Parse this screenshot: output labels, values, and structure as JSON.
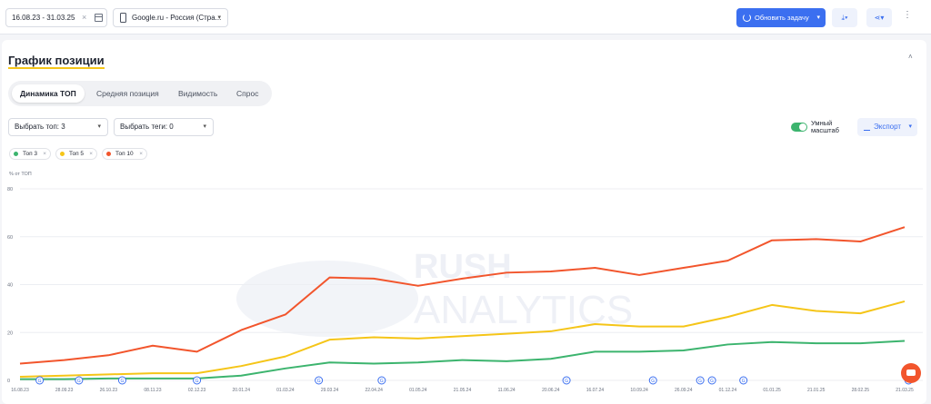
{
  "toolbar": {
    "date_range": "16.08.23 - 31.03.25",
    "clear_symbol": "×",
    "search_engine": "Google.ru - Россия (Стра...",
    "update_button": "Обновить задачу",
    "chevron": "▾",
    "kebab": "⋮"
  },
  "card": {
    "title": "График позиции",
    "collapse": "˄",
    "tabs": [
      "Динамика ТОП",
      "Средняя позиция",
      "Видимость",
      "Спрос"
    ],
    "select_top": "Выбрать топ: 3",
    "select_tags": "Выбрать теги: 0",
    "smart_scale": "Умный масштаб",
    "export": "Экспорт",
    "chips": [
      {
        "label": "Топ 3",
        "color": "#3cb46e"
      },
      {
        "label": "Топ 5",
        "color": "#f5c518"
      },
      {
        "label": "Топ 10",
        "color": "#f2552c"
      }
    ],
    "chip_close": "×"
  },
  "chart_data": {
    "type": "line",
    "ylabel": "% от ТОП",
    "ylim": [
      0,
      80
    ],
    "yticks": [
      0,
      20,
      40,
      60,
      80
    ],
    "grid": true,
    "watermark_top": "RUSH",
    "watermark_bottom": "ANALYTICS",
    "x_tick_labels": [
      "16.08.23",
      "28.09.23",
      "26.10.23",
      "08.11.23",
      "02.12.23",
      "20.01.24",
      "01.03.24",
      "29.03.24",
      "22.04.24",
      "01.05.24",
      "21.05.24",
      "11.06.24",
      "20.06.24",
      "16.07.24",
      "10.09.24",
      "26.09.24",
      "01.12.24",
      "01.01.25",
      "21.01.25",
      "28.02.25",
      "21.03.25"
    ],
    "series": [
      {
        "name": "Топ 3",
        "color": "#3cb46e",
        "values": [
          0.5,
          0.5,
          0.8,
          0.8,
          0.8,
          2,
          5,
          7.5,
          7,
          7.5,
          8.5,
          8,
          9,
          12,
          12,
          12.5,
          15,
          16,
          15.5,
          15.5,
          16.5
        ]
      },
      {
        "name": "Топ 5",
        "color": "#f5c518",
        "values": [
          1.5,
          2,
          2.5,
          3,
          3,
          6,
          10,
          17,
          18,
          17.5,
          18.5,
          19.5,
          20.5,
          23.5,
          22.5,
          22.5,
          26.5,
          31.5,
          29,
          28,
          33
        ]
      },
      {
        "name": "Топ 10",
        "color": "#f2552c",
        "values": [
          7,
          8.5,
          10.5,
          14.5,
          12,
          21,
          27.5,
          43,
          42.5,
          39.5,
          42.5,
          45,
          45.5,
          47,
          44,
          47,
          50,
          58.5,
          59,
          58,
          64
        ]
      }
    ],
    "event_marker_label": "G",
    "event_markers": [
      0.5,
      1.5,
      2.6,
      4.5,
      7.6,
      9.2,
      13.9,
      16.1,
      17.3,
      17.6,
      18.4,
      22.6
    ]
  }
}
